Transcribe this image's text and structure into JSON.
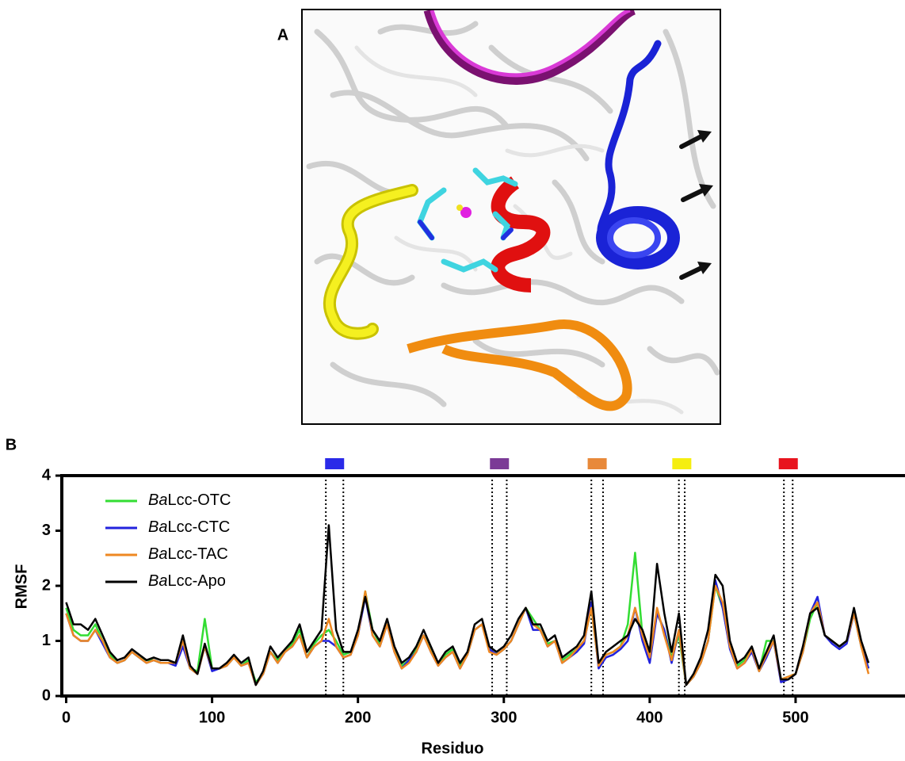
{
  "panel_labels": [
    "A",
    "B"
  ],
  "chart_data": {
    "type": "line",
    "x_label": "Residuo",
    "y_label": "RMSF",
    "xlim": [
      -3,
      575
    ],
    "ylim": [
      0,
      4
    ],
    "xticks": [
      0,
      100,
      200,
      300,
      400,
      500
    ],
    "yticks": [
      0,
      1,
      2,
      3,
      4
    ],
    "legend": "upper left",
    "regions": [
      {
        "start": 178,
        "end": 190,
        "color": "#2a2ae8"
      },
      {
        "start": 292,
        "end": 302,
        "color": "#7b3a96"
      },
      {
        "start": 360,
        "end": 368,
        "color": "#e8893a"
      },
      {
        "start": 420,
        "end": 424,
        "color": "#f5ee10"
      },
      {
        "start": 492,
        "end": 498,
        "color": "#e8141e"
      }
    ],
    "x": [
      0,
      5,
      10,
      15,
      20,
      25,
      30,
      35,
      40,
      45,
      50,
      55,
      60,
      65,
      70,
      75,
      80,
      85,
      90,
      95,
      100,
      105,
      110,
      115,
      120,
      125,
      130,
      135,
      140,
      145,
      150,
      155,
      160,
      165,
      170,
      175,
      180,
      185,
      190,
      195,
      200,
      205,
      210,
      215,
      220,
      225,
      230,
      235,
      240,
      245,
      250,
      255,
      260,
      265,
      270,
      275,
      280,
      285,
      290,
      295,
      300,
      305,
      310,
      315,
      320,
      325,
      330,
      335,
      340,
      345,
      350,
      355,
      360,
      365,
      370,
      375,
      380,
      385,
      390,
      395,
      400,
      405,
      410,
      415,
      420,
      425,
      430,
      435,
      440,
      445,
      450,
      455,
      460,
      465,
      470,
      475,
      480,
      485,
      490,
      495,
      500,
      505,
      510,
      515,
      520,
      525,
      530,
      535,
      540,
      545,
      550
    ],
    "series": [
      {
        "name": "BaLcc-OTC",
        "color": "#33dd33",
        "values": [
          1.6,
          1.2,
          1.1,
          1.1,
          1.3,
          1.0,
          0.75,
          0.6,
          0.65,
          0.8,
          0.7,
          0.65,
          0.65,
          0.6,
          0.6,
          0.6,
          1.0,
          0.5,
          0.45,
          1.4,
          0.5,
          0.5,
          0.55,
          0.7,
          0.55,
          0.65,
          0.25,
          0.4,
          0.8,
          0.65,
          0.8,
          0.95,
          1.2,
          0.7,
          0.95,
          1.1,
          1.2,
          1.0,
          0.75,
          0.8,
          1.1,
          1.9,
          1.2,
          0.95,
          1.3,
          0.85,
          0.55,
          0.65,
          0.85,
          1.1,
          0.85,
          0.6,
          0.75,
          0.85,
          0.55,
          0.75,
          1.2,
          1.3,
          0.85,
          0.75,
          0.85,
          1.0,
          1.3,
          1.6,
          1.4,
          1.2,
          0.95,
          1.0,
          0.65,
          0.75,
          0.85,
          1.0,
          1.6,
          0.55,
          0.75,
          0.8,
          0.9,
          1.3,
          2.6,
          1.1,
          0.7,
          1.5,
          1.2,
          0.7,
          1.1,
          0.2,
          0.35,
          0.6,
          1.0,
          2.0,
          1.6,
          0.9,
          0.55,
          0.65,
          0.85,
          0.45,
          1.0,
          1.0,
          0.3,
          0.35,
          0.4,
          0.8,
          1.4,
          1.7,
          1.1,
          1.0,
          0.9,
          1.0,
          1.5,
          0.9,
          0.5
        ]
      },
      {
        "name": "BaLcc-CTC",
        "color": "#2222dd",
        "values": [
          1.5,
          1.1,
          1.0,
          1.0,
          1.2,
          0.95,
          0.7,
          0.6,
          0.65,
          0.8,
          0.7,
          0.6,
          0.65,
          0.6,
          0.6,
          0.55,
          0.9,
          0.5,
          0.4,
          0.9,
          0.45,
          0.5,
          0.55,
          0.7,
          0.55,
          0.6,
          0.2,
          0.4,
          0.8,
          0.6,
          0.8,
          0.9,
          1.1,
          0.7,
          0.9,
          1.0,
          1.0,
          0.9,
          0.7,
          0.75,
          1.1,
          1.8,
          1.1,
          0.9,
          1.3,
          0.8,
          0.5,
          0.65,
          0.8,
          1.1,
          0.8,
          0.55,
          0.7,
          0.8,
          0.5,
          0.75,
          1.2,
          1.3,
          0.85,
          0.75,
          0.85,
          1.0,
          1.3,
          1.6,
          1.2,
          1.2,
          0.9,
          1.0,
          0.6,
          0.7,
          0.8,
          0.95,
          1.7,
          0.5,
          0.7,
          0.75,
          0.85,
          1.0,
          1.6,
          1.0,
          0.6,
          1.5,
          1.2,
          0.6,
          1.2,
          0.2,
          0.35,
          0.6,
          1.0,
          2.1,
          1.6,
          0.85,
          0.5,
          0.6,
          0.8,
          0.45,
          0.7,
          1.0,
          0.25,
          0.3,
          0.4,
          0.8,
          1.5,
          1.8,
          1.1,
          0.95,
          0.85,
          0.95,
          1.5,
          0.9,
          0.5
        ]
      },
      {
        "name": "BaLcc-TAC",
        "color": "#ee8822",
        "values": [
          1.5,
          1.1,
          1.0,
          1.0,
          1.2,
          1.0,
          0.7,
          0.6,
          0.65,
          0.8,
          0.7,
          0.6,
          0.65,
          0.6,
          0.6,
          0.6,
          1.0,
          0.5,
          0.4,
          0.9,
          0.5,
          0.5,
          0.55,
          0.7,
          0.55,
          0.6,
          0.2,
          0.4,
          0.8,
          0.6,
          0.8,
          0.9,
          1.1,
          0.7,
          0.9,
          1.0,
          1.4,
          0.9,
          0.7,
          0.75,
          1.1,
          1.9,
          1.1,
          0.9,
          1.3,
          0.8,
          0.5,
          0.6,
          0.8,
          1.1,
          0.8,
          0.55,
          0.7,
          0.8,
          0.5,
          0.75,
          1.2,
          1.3,
          0.8,
          0.75,
          0.85,
          1.0,
          1.3,
          1.6,
          1.3,
          1.2,
          0.9,
          1.0,
          0.6,
          0.7,
          0.85,
          1.0,
          1.6,
          0.55,
          0.75,
          0.8,
          0.9,
          1.1,
          1.6,
          1.1,
          0.7,
          1.6,
          1.1,
          0.65,
          1.2,
          0.2,
          0.35,
          0.6,
          1.0,
          2.0,
          1.7,
          0.9,
          0.5,
          0.6,
          0.85,
          0.45,
          0.75,
          1.0,
          0.3,
          0.35,
          0.4,
          0.8,
          1.5,
          1.7,
          1.1,
          1.0,
          0.9,
          1.0,
          1.5,
          0.9,
          0.4
        ]
      },
      {
        "name": "BaLcc-Apo",
        "color": "#000000",
        "values": [
          1.7,
          1.3,
          1.3,
          1.2,
          1.4,
          1.1,
          0.8,
          0.65,
          0.7,
          0.85,
          0.75,
          0.65,
          0.7,
          0.65,
          0.65,
          0.6,
          1.1,
          0.55,
          0.4,
          0.95,
          0.5,
          0.5,
          0.6,
          0.75,
          0.6,
          0.7,
          0.2,
          0.45,
          0.9,
          0.7,
          0.85,
          1.0,
          1.3,
          0.8,
          1.0,
          1.2,
          3.1,
          1.2,
          0.8,
          0.8,
          1.2,
          1.8,
          1.2,
          1.0,
          1.4,
          0.9,
          0.6,
          0.7,
          0.9,
          1.2,
          0.9,
          0.6,
          0.8,
          0.9,
          0.6,
          0.8,
          1.3,
          1.4,
          0.9,
          0.8,
          0.9,
          1.1,
          1.4,
          1.6,
          1.3,
          1.3,
          1.0,
          1.1,
          0.7,
          0.8,
          0.9,
          1.1,
          1.9,
          0.6,
          0.8,
          0.9,
          1.0,
          1.1,
          1.4,
          1.2,
          0.8,
          2.4,
          1.5,
          0.8,
          1.5,
          0.2,
          0.4,
          0.7,
          1.2,
          2.2,
          2.0,
          1.0,
          0.6,
          0.7,
          0.9,
          0.5,
          0.8,
          1.1,
          0.3,
          0.3,
          0.4,
          0.9,
          1.5,
          1.6,
          1.1,
          1.0,
          0.9,
          1.0,
          1.6,
          1.0,
          0.6
        ]
      }
    ]
  }
}
